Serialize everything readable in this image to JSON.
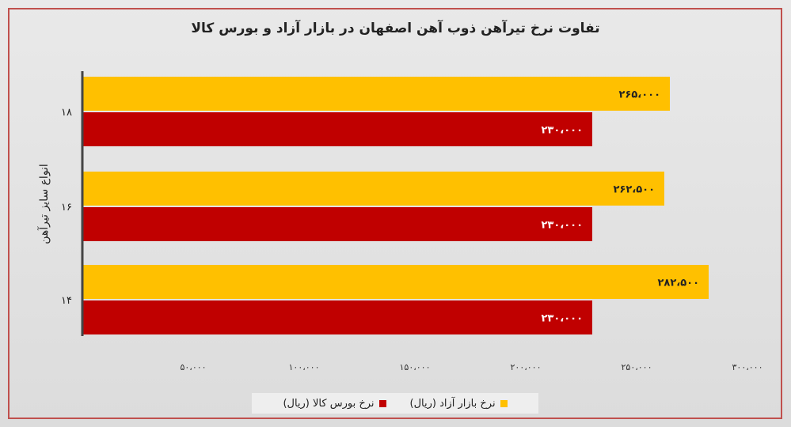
{
  "chart_data": {
    "type": "bar",
    "orientation": "horizontal",
    "title": "تفاوت نرخ تیرآهن ذوب آهن اصفهان در بازار آزاد و بورس کالا",
    "ylabel": "انواع سایز تیرآهن",
    "xlabel": "",
    "categories": [
      "۱۸",
      "۱۶",
      "۱۴"
    ],
    "xlim": [
      0,
      300000
    ],
    "xticks": [
      50000,
      100000,
      150000,
      200000,
      250000,
      300000
    ],
    "xtick_labels": [
      "۵۰،۰۰۰",
      "۱۰۰،۰۰۰",
      "۱۵۰،۰۰۰",
      "۲۰۰،۰۰۰",
      "۲۵۰،۰۰۰",
      "۳۰۰،۰۰۰"
    ],
    "grid": false,
    "legend_position": "bottom",
    "series": [
      {
        "name": "نرخ بازار آزاد (ریال)",
        "color": "#ffc000",
        "values": [
          265000,
          262500,
          282500
        ],
        "labels": [
          "۲۶۵،۰۰۰",
          "۲۶۲،۵۰۰",
          "۲۸۲،۵۰۰"
        ]
      },
      {
        "name": "نرخ بورس کالا (ریال)",
        "color": "#c00000",
        "values": [
          230000,
          230000,
          230000
        ],
        "labels": [
          "۲۳۰،۰۰۰",
          "۲۳۰،۰۰۰",
          "۲۳۰،۰۰۰"
        ]
      }
    ]
  }
}
